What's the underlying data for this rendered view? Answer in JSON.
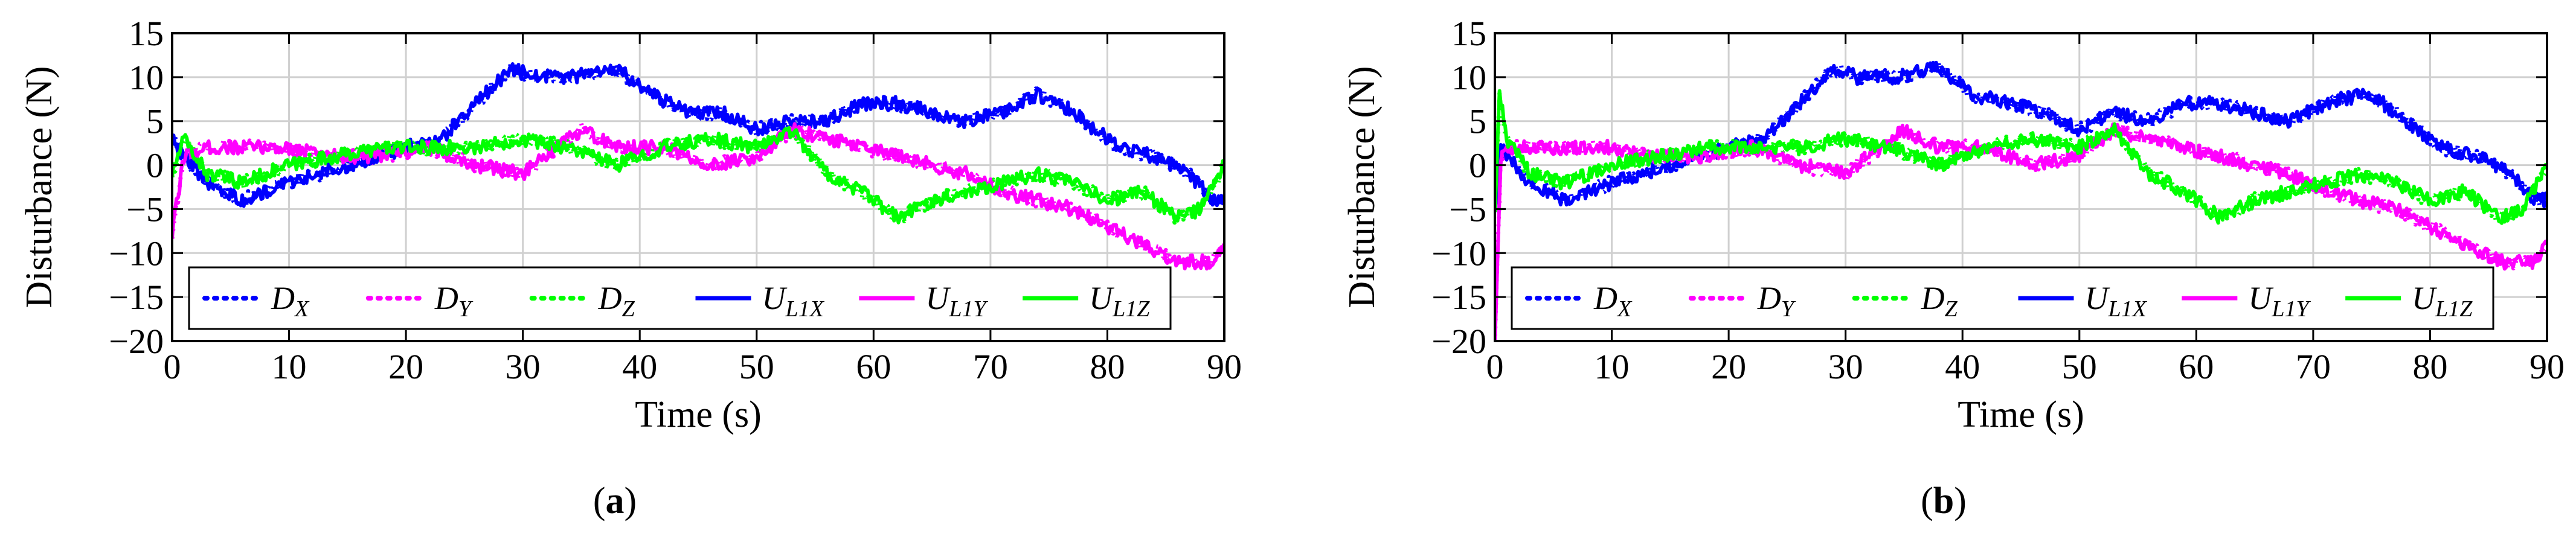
{
  "chart_data": [
    {
      "type": "line",
      "panel_label": "(a)",
      "xlabel": "Time (s)",
      "ylabel": "Disturbance (N)",
      "xlim": [
        0,
        90
      ],
      "ylim": [
        -20,
        15
      ],
      "xticks": [
        0,
        10,
        20,
        30,
        40,
        50,
        60,
        70,
        80,
        90
      ],
      "yticks": [
        15,
        10,
        5,
        0,
        -5,
        -10,
        -15,
        -20
      ],
      "grid": true,
      "legend": "bottom, inside, one row",
      "series": [
        {
          "name": "D",
          "subscript": "X",
          "color": "#0000ff",
          "style": "dotted",
          "x": [
            0,
            1,
            3,
            6,
            10,
            15,
            20,
            23,
            26,
            29,
            31,
            34,
            38,
            41,
            44,
            47,
            50,
            53,
            56,
            59,
            62,
            65,
            68,
            71,
            74,
            76,
            78,
            81,
            84,
            87,
            89,
            90
          ],
          "y": [
            3,
            1,
            -2,
            -4,
            -2,
            0,
            2,
            3,
            7,
            11,
            10,
            10,
            11,
            8,
            6,
            6,
            4,
            5,
            5,
            7,
            7,
            6,
            5,
            6,
            8,
            7,
            5,
            2,
            1,
            -1,
            -4,
            -4
          ]
        },
        {
          "name": "D",
          "subscript": "Y",
          "color": "#ff00ff",
          "style": "dotted",
          "x": [
            0,
            1,
            3,
            6,
            10,
            14,
            18,
            22,
            26,
            30,
            33,
            35,
            38,
            42,
            46,
            50,
            53,
            56,
            59,
            62,
            65,
            68,
            71,
            74,
            77,
            80,
            83,
            86,
            89,
            90
          ],
          "y": [
            -8,
            1,
            2,
            2,
            2,
            1,
            1,
            2,
            0,
            -1,
            2,
            4,
            2,
            2,
            0,
            1,
            4,
            3,
            2,
            1,
            0,
            -1,
            -3,
            -4,
            -5,
            -7,
            -9,
            -11,
            -11,
            -9
          ]
        },
        {
          "name": "D",
          "subscript": "Z",
          "color": "#00ff00",
          "style": "dotted",
          "x": [
            0,
            1,
            3,
            6,
            10,
            14,
            18,
            22,
            26,
            30,
            34,
            38,
            42,
            46,
            50,
            53,
            56,
            59,
            62,
            65,
            68,
            71,
            74,
            77,
            80,
            83,
            86,
            88,
            90
          ],
          "y": [
            -1,
            3,
            -1,
            -2,
            0,
            1,
            2,
            2,
            2,
            3,
            2,
            0,
            2,
            3,
            2,
            4,
            -1,
            -3,
            -6,
            -4,
            -3,
            -2,
            -1,
            -2,
            -4,
            -3,
            -6,
            -5,
            0
          ]
        },
        {
          "name": "U",
          "subscript": "L1X",
          "color": "#0000ff",
          "style": "solid",
          "x": [
            0,
            1,
            3,
            6,
            10,
            15,
            20,
            23,
            26,
            29,
            31,
            34,
            38,
            41,
            44,
            47,
            50,
            53,
            56,
            59,
            62,
            65,
            68,
            71,
            74,
            76,
            78,
            81,
            84,
            87,
            89,
            90
          ],
          "y": [
            3,
            1,
            -2,
            -4,
            -2,
            0,
            2,
            3,
            7,
            11,
            10,
            10,
            11,
            8,
            6,
            6,
            4,
            5,
            5,
            7,
            7,
            6,
            5,
            6,
            8,
            7,
            5,
            2,
            1,
            -1,
            -4,
            -4
          ]
        },
        {
          "name": "U",
          "subscript": "L1Y",
          "color": "#ff00ff",
          "style": "solid",
          "x": [
            0,
            1,
            3,
            6,
            10,
            14,
            18,
            22,
            26,
            30,
            33,
            35,
            38,
            42,
            46,
            50,
            53,
            56,
            59,
            62,
            65,
            68,
            71,
            74,
            77,
            80,
            83,
            86,
            89,
            90
          ],
          "y": [
            -8,
            1,
            2,
            2,
            2,
            1,
            1,
            2,
            0,
            -1,
            2,
            4,
            2,
            2,
            0,
            1,
            4,
            3,
            2,
            1,
            0,
            -1,
            -3,
            -4,
            -5,
            -7,
            -9,
            -11,
            -11,
            -9
          ]
        },
        {
          "name": "U",
          "subscript": "L1Z",
          "color": "#00ff00",
          "style": "solid",
          "x": [
            0,
            1,
            3,
            6,
            10,
            14,
            18,
            22,
            26,
            30,
            34,
            38,
            42,
            46,
            50,
            53,
            56,
            59,
            62,
            65,
            68,
            71,
            74,
            77,
            80,
            83,
            86,
            88,
            90
          ],
          "y": [
            -1,
            3,
            -1,
            -2,
            0,
            1,
            2,
            2,
            2,
            3,
            2,
            0,
            2,
            3,
            2,
            4,
            -1,
            -3,
            -6,
            -4,
            -3,
            -2,
            -1,
            -2,
            -4,
            -3,
            -6,
            -5,
            0
          ]
        }
      ]
    },
    {
      "type": "line",
      "panel_label": "(b)",
      "xlabel": "Time (s)",
      "ylabel": "Disturbance (N)",
      "xlim": [
        0,
        90
      ],
      "ylim": [
        -20,
        15
      ],
      "xticks": [
        0,
        10,
        20,
        30,
        40,
        50,
        60,
        70,
        80,
        90
      ],
      "yticks": [
        15,
        10,
        5,
        0,
        -5,
        -10,
        -15,
        -20
      ],
      "grid": true,
      "legend": "bottom, inside, one row",
      "series": [
        {
          "name": "D",
          "subscript": "X",
          "color": "#0000ff",
          "style": "dotted",
          "x": [
            0,
            0.5,
            1,
            3,
            6,
            10,
            15,
            20,
            23,
            26,
            29,
            31,
            34,
            38,
            41,
            44,
            47,
            50,
            53,
            56,
            59,
            62,
            65,
            68,
            71,
            74,
            76,
            78,
            81,
            84,
            87,
            89,
            90
          ],
          "y": [
            -5,
            2,
            1,
            -2,
            -4,
            -2,
            0,
            2,
            3,
            7,
            11,
            10,
            10,
            11,
            8,
            7,
            6,
            4,
            6,
            5,
            7,
            7,
            6,
            5,
            7,
            8,
            7,
            5,
            2,
            1,
            -1,
            -4,
            -4
          ]
        },
        {
          "name": "D",
          "subscript": "Y",
          "color": "#ff00ff",
          "style": "dotted",
          "x": [
            0,
            0.5,
            1.5,
            3,
            6,
            10,
            14,
            18,
            22,
            26,
            30,
            33,
            35,
            38,
            42,
            46,
            50,
            53,
            56,
            59,
            62,
            65,
            68,
            71,
            74,
            77,
            80,
            83,
            86,
            89,
            90
          ],
          "y": [
            -20,
            1,
            2,
            2,
            2,
            2,
            1,
            1,
            2,
            0,
            -1,
            2,
            4,
            2,
            2,
            0,
            1,
            4,
            3,
            2,
            1,
            0,
            -1,
            -3,
            -4,
            -5,
            -7,
            -9,
            -11,
            -11,
            -9
          ]
        },
        {
          "name": "D",
          "subscript": "Z",
          "color": "#00ff00",
          "style": "dotted",
          "x": [
            0,
            0.4,
            1,
            3,
            6,
            10,
            14,
            18,
            22,
            26,
            30,
            34,
            38,
            42,
            46,
            50,
            53,
            56,
            59,
            62,
            65,
            68,
            71,
            74,
            77,
            80,
            83,
            86,
            88,
            90
          ],
          "y": [
            -5,
            8,
            3,
            -1,
            -2,
            0,
            1,
            2,
            2,
            2,
            3,
            2,
            0,
            2,
            3,
            2,
            4,
            -1,
            -3,
            -6,
            -4,
            -3,
            -2,
            -1,
            -2,
            -4,
            -3,
            -6,
            -5,
            0
          ]
        },
        {
          "name": "U",
          "subscript": "L1X",
          "color": "#0000ff",
          "style": "solid",
          "x": [
            0,
            0.5,
            1,
            3,
            6,
            10,
            15,
            20,
            23,
            26,
            29,
            31,
            34,
            38,
            41,
            44,
            47,
            50,
            53,
            56,
            59,
            62,
            65,
            68,
            71,
            74,
            76,
            78,
            81,
            84,
            87,
            89,
            90
          ],
          "y": [
            -5,
            2,
            1,
            -2,
            -4,
            -2,
            0,
            2,
            3,
            7,
            11,
            10,
            10,
            11,
            8,
            7,
            6,
            4,
            6,
            5,
            7,
            7,
            6,
            5,
            7,
            8,
            7,
            5,
            2,
            1,
            -1,
            -4,
            -4
          ]
        },
        {
          "name": "U",
          "subscript": "L1Y",
          "color": "#ff00ff",
          "style": "solid",
          "x": [
            0,
            0.5,
            1.5,
            3,
            6,
            10,
            14,
            18,
            22,
            26,
            30,
            33,
            35,
            38,
            42,
            46,
            50,
            53,
            56,
            59,
            62,
            65,
            68,
            71,
            74,
            77,
            80,
            83,
            86,
            89,
            90
          ],
          "y": [
            -20,
            1,
            2,
            2,
            2,
            2,
            1,
            1,
            2,
            0,
            -1,
            2,
            4,
            2,
            2,
            0,
            1,
            4,
            3,
            2,
            1,
            0,
            -1,
            -3,
            -4,
            -5,
            -7,
            -9,
            -11,
            -11,
            -9
          ]
        },
        {
          "name": "U",
          "subscript": "L1Z",
          "color": "#00ff00",
          "style": "solid",
          "x": [
            0,
            0.4,
            1,
            3,
            6,
            10,
            14,
            18,
            22,
            26,
            30,
            34,
            38,
            42,
            46,
            50,
            53,
            56,
            59,
            62,
            65,
            68,
            71,
            74,
            77,
            80,
            83,
            86,
            88,
            90
          ],
          "y": [
            -5,
            8,
            3,
            -1,
            -2,
            0,
            1,
            2,
            2,
            2,
            3,
            2,
            0,
            2,
            3,
            2,
            4,
            -1,
            -3,
            -6,
            -4,
            -3,
            -2,
            -1,
            -2,
            -4,
            -3,
            -6,
            -5,
            0
          ]
        }
      ]
    }
  ]
}
